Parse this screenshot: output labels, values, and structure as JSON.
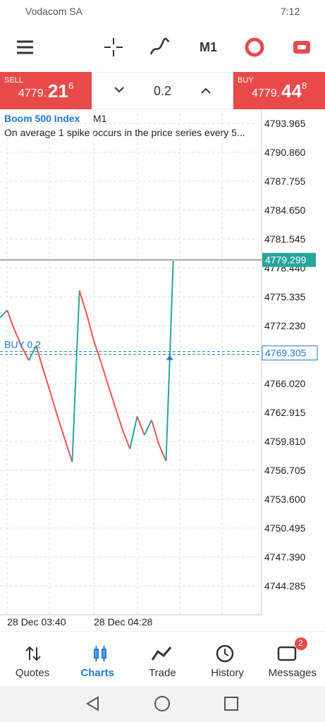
{
  "status_bar": {
    "carrier": "Vodacom SA",
    "time": "7:12"
  },
  "toolbar": {
    "timeframe": "M1"
  },
  "trade_panel": {
    "sell": {
      "label": "SELL",
      "price_main": "4779.",
      "price_big": "21",
      "price_sup": "6"
    },
    "volume": "0.2",
    "buy": {
      "label": "BUY",
      "price_main": "4779.",
      "price_big": "44",
      "price_sup": "8"
    }
  },
  "chart_data": {
    "type": "line",
    "symbol": "Boom 500 Index",
    "timeframe": "M1",
    "description": "On average 1 spike occurs in the price series every 5...",
    "categories": [
      null,
      "28 Dec 03:40",
      null,
      null,
      null,
      null,
      null,
      null,
      null,
      null,
      null,
      null,
      null,
      "28 Dec 04:28",
      null,
      null,
      null,
      null,
      null,
      null,
      null,
      null,
      null,
      null,
      null
    ],
    "values": [
      4773.1,
      4773.9,
      4771.8,
      4770.0,
      4768.5,
      4770.1,
      4767.5,
      4765.0,
      4762.4,
      4760.0,
      4757.6,
      4776.0,
      4773.5,
      4770.6,
      4768.3,
      4765.8,
      4763.4,
      4761.0,
      4759.0,
      4762.5,
      4760.5,
      4762.1,
      4759.5,
      4757.7,
      4779.2
    ],
    "up_color": "#26a69a",
    "down_color": "#ef5350",
    "ylim": [
      4741.18,
      4795.1
    ],
    "yticks": [
      4793.965,
      {
        "value": 4790.86,
        "label": "4790.860"
      },
      4787.755,
      {
        "value": 4784.65,
        "label": "4784.650"
      },
      4781.545,
      {
        "value": 4778.44,
        "label": "4778.440"
      },
      4775.335,
      {
        "value": 4772.23,
        "label": "4772.230"
      },
      {
        "value": 4766.02,
        "label": "4766.020"
      },
      4762.915,
      {
        "value": 4759.81,
        "label": "4759.810"
      },
      4756.705,
      {
        "value": 4753.6,
        "label": "4753.600"
      },
      4750.495,
      {
        "value": 4747.39,
        "label": "4747.390"
      },
      4744.285
    ],
    "grid": true,
    "current_price": 4779.299,
    "position": {
      "label": "BUY 0.2",
      "price": 4769.305
    }
  },
  "bottom_nav": {
    "items": [
      "Quotes",
      "Charts",
      "Trade",
      "History",
      "Messages"
    ],
    "active": "Charts",
    "badge": "2"
  }
}
